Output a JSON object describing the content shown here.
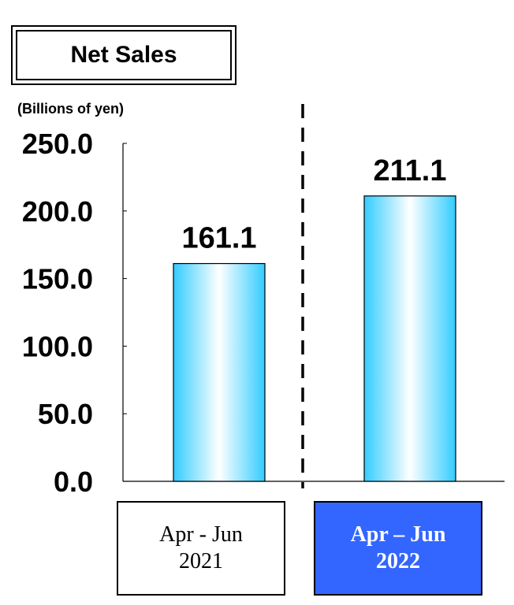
{
  "title": "Net Sales",
  "unit_label": "(Billions of yen)",
  "period_labels": [
    {
      "line1": "Apr - Jun",
      "line2": "2021"
    },
    {
      "line1": "Apr – Jun",
      "line2": "2022"
    }
  ],
  "colors": {
    "bar_edge": "#33ccff",
    "bar_center": "#ffffff",
    "highlight_box": "#3366ff"
  },
  "chart_data": {
    "type": "bar",
    "categories": [
      "Apr - Jun 2021",
      "Apr – Jun 2022"
    ],
    "values": [
      161.1,
      211.1
    ],
    "data_labels": [
      "161.1",
      "211.1"
    ],
    "ylabel": "(Billions of yen)",
    "ylim": [
      0,
      250
    ],
    "yticks": [
      0,
      50,
      100,
      150,
      200,
      250
    ],
    "ytick_labels": [
      "0.0",
      "50.0",
      "100.0",
      "150.0",
      "200.0",
      "250.0"
    ],
    "grid": false,
    "separator": "dashed vertical line between categories"
  }
}
